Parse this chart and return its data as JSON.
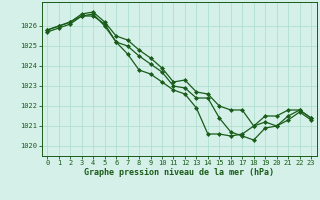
{
  "title": "Graphe pression niveau de la mer (hPa)",
  "background_color": "#d4f0e8",
  "plot_background": "#d4f0e8",
  "line_color": "#1a5c1a",
  "marker": "D",
  "markersize": 2.0,
  "linewidth": 0.9,
  "xlim": [
    -0.5,
    23.5
  ],
  "ylim": [
    1019.5,
    1027.2
  ],
  "yticks": [
    1020,
    1021,
    1022,
    1023,
    1024,
    1025,
    1026
  ],
  "xticks": [
    0,
    1,
    2,
    3,
    4,
    5,
    6,
    7,
    8,
    9,
    10,
    11,
    12,
    13,
    14,
    15,
    16,
    17,
    18,
    19,
    20,
    21,
    22,
    23
  ],
  "grid_color": "#aaddcc",
  "tick_fontsize": 5.0,
  "label_fontsize": 6.0,
  "series": [
    [
      1025.8,
      1026.0,
      1026.2,
      1026.6,
      1026.7,
      1026.2,
      1025.5,
      1025.3,
      1024.8,
      1024.4,
      1023.9,
      1023.2,
      1023.3,
      1022.7,
      1022.6,
      1022.0,
      1021.8,
      1021.8,
      1021.0,
      1021.5,
      1021.5,
      1021.8,
      1021.8,
      1021.4
    ],
    [
      1025.7,
      1025.9,
      1026.1,
      1026.5,
      1026.5,
      1026.1,
      1025.2,
      1025.0,
      1024.5,
      1024.1,
      1023.7,
      1023.0,
      1022.9,
      1022.4,
      1022.4,
      1021.4,
      1020.7,
      1020.5,
      1020.3,
      1020.9,
      1021.0,
      1021.3,
      1021.7,
      1021.3
    ],
    [
      1025.8,
      1026.0,
      1026.2,
      1026.5,
      1026.6,
      1026.0,
      1025.2,
      1024.6,
      1023.8,
      1023.6,
      1023.2,
      1022.8,
      1022.6,
      1021.9,
      1020.6,
      1020.6,
      1020.5,
      1020.6,
      1021.0,
      1021.2,
      1021.0,
      1021.5,
      1021.8,
      1021.4
    ]
  ]
}
